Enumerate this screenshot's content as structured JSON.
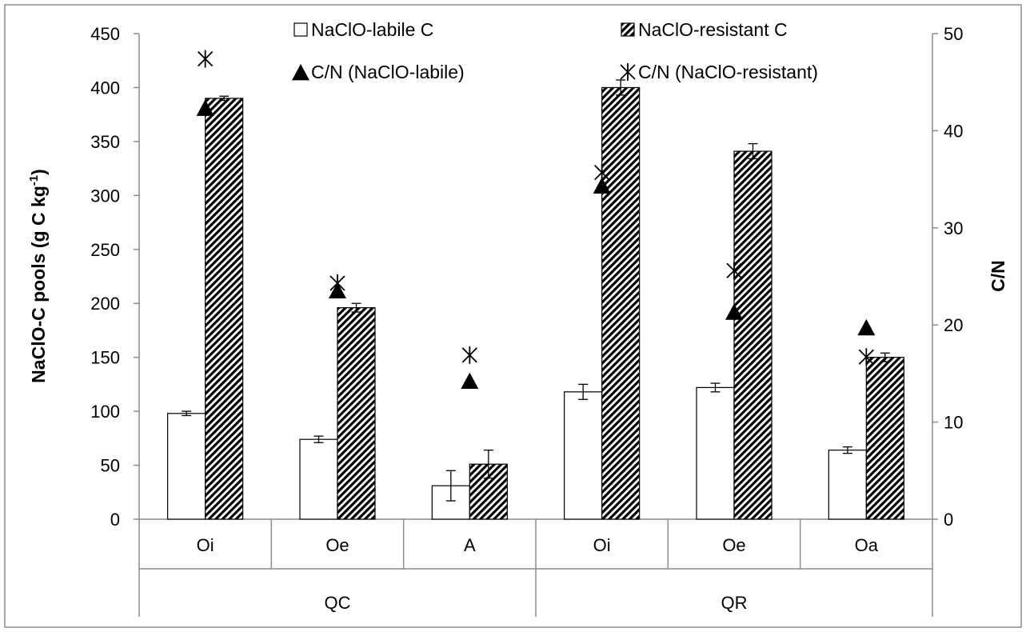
{
  "chart_data": {
    "type": "bar",
    "ylabel_left_main": "NaClO-C pools (g C kg",
    "ylabel_left_sup": "-1",
    "ylabel_left_end": ")",
    "ylabel_right": "C/N",
    "ylim_left": [
      0,
      450
    ],
    "yticks_left": [
      0,
      50,
      100,
      150,
      200,
      250,
      300,
      350,
      400,
      450
    ],
    "ylim_right": [
      0,
      50
    ],
    "yticks_right": [
      0,
      10,
      20,
      30,
      40,
      50
    ],
    "groups": [
      {
        "label": "QC",
        "categories": [
          "Oi",
          "Oe",
          "A"
        ]
      },
      {
        "label": "QR",
        "categories": [
          "Oi",
          "Oe",
          "Oa"
        ]
      }
    ],
    "categories": [
      "Oi",
      "Oe",
      "A",
      "Oi",
      "Oe",
      "Oa"
    ],
    "series": [
      {
        "name": "NaClO-labile C",
        "values": [
          98,
          74,
          31,
          118,
          122,
          64
        ],
        "errors": [
          2,
          3,
          14,
          7,
          4,
          3
        ],
        "fill": "#ffffff"
      },
      {
        "name": "NaClO-resistant C",
        "values": [
          390,
          196,
          51,
          400,
          341,
          150
        ],
        "errors": [
          2,
          4,
          13,
          7,
          7,
          4
        ],
        "fill": "hatch"
      }
    ],
    "markers": [
      {
        "name": "C/N (NaClO-labile)",
        "symbol": "triangle",
        "values": [
          42.3,
          23.5,
          14.2,
          34.3,
          21.3,
          19.7
        ]
      },
      {
        "name": "C/N (NaClO-resistant)",
        "symbol": "asterisk",
        "values": [
          47.4,
          24.3,
          16.9,
          35.7,
          25.6,
          16.7
        ]
      }
    ],
    "legend_position": "top"
  }
}
